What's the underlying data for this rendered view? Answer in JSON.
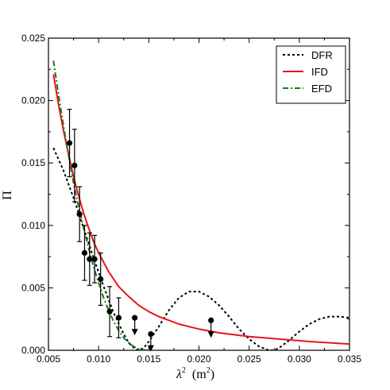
{
  "chart_data": {
    "type": "line",
    "xlabel": "λ² (m²)",
    "xlabel_main": "λ",
    "xlabel_exp": "2",
    "xlabel_unit": "(m",
    "xlabel_unit_exp": "2",
    "xlabel_unit_close": ")",
    "ylabel": "Π",
    "xlim": [
      0.005,
      0.035
    ],
    "ylim": [
      0.0,
      0.025
    ],
    "x_ticks": [
      "0.005",
      "0.010",
      "0.015",
      "0.020",
      "0.025",
      "0.030",
      "0.035"
    ],
    "y_ticks": [
      "0.000",
      "0.005",
      "0.010",
      "0.015",
      "0.020",
      "0.025"
    ],
    "x_tick_values": [
      0.005,
      0.01,
      0.015,
      0.02,
      0.025,
      0.03,
      0.035
    ],
    "y_tick_values": [
      0.0,
      0.005,
      0.01,
      0.015,
      0.02,
      0.025
    ],
    "legend_position": "top-right",
    "series": [
      {
        "name": "DFR",
        "style": "dotted",
        "color": "#000000",
        "x": [
          0.0055,
          0.0065,
          0.0075,
          0.0085,
          0.0095,
          0.0105,
          0.0115,
          0.0125,
          0.013,
          0.0135,
          0.014,
          0.0145,
          0.015,
          0.016,
          0.017,
          0.018,
          0.019,
          0.02,
          0.021,
          0.022,
          0.023,
          0.024,
          0.025,
          0.026,
          0.027,
          0.0275,
          0.028,
          0.029,
          0.03,
          0.031,
          0.032,
          0.033,
          0.034,
          0.035
        ],
        "y": [
          0.0162,
          0.0144,
          0.0122,
          0.0098,
          0.0074,
          0.0051,
          0.003,
          0.0013,
          0.0006,
          0.0002,
          0.0,
          0.0002,
          0.0007,
          0.0019,
          0.0032,
          0.0042,
          0.0047,
          0.0047,
          0.0043,
          0.0036,
          0.0027,
          0.0017,
          0.0009,
          0.0003,
          0.0,
          0.0,
          0.0002,
          0.0008,
          0.0015,
          0.0021,
          0.0025,
          0.0027,
          0.0027,
          0.0026
        ]
      },
      {
        "name": "IFD",
        "style": "solid",
        "color": "#e8141b",
        "x": [
          0.0055,
          0.006,
          0.0065,
          0.007,
          0.0075,
          0.008,
          0.0085,
          0.009,
          0.0095,
          0.01,
          0.011,
          0.012,
          0.013,
          0.014,
          0.015,
          0.016,
          0.018,
          0.02,
          0.022,
          0.025,
          0.028,
          0.031,
          0.035
        ],
        "y": [
          0.0221,
          0.0197,
          0.0176,
          0.0157,
          0.0139,
          0.0124,
          0.011,
          0.0098,
          0.0087,
          0.0078,
          0.0063,
          0.0051,
          0.0043,
          0.0036,
          0.0031,
          0.0027,
          0.0021,
          0.0017,
          0.0014,
          0.0011,
          0.0009,
          0.0007,
          0.0005
        ]
      },
      {
        "name": "EFD",
        "style": "dash-dot",
        "color": "#1a7a1a",
        "x": [
          0.0055,
          0.006,
          0.0065,
          0.007,
          0.0075,
          0.008,
          0.0085,
          0.009,
          0.0095,
          0.01,
          0.0105,
          0.011,
          0.0115,
          0.012,
          0.0125,
          0.013,
          0.0135,
          0.014,
          0.0145,
          0.015,
          0.0155
        ],
        "y": [
          0.0232,
          0.0205,
          0.018,
          0.0156,
          0.0134,
          0.0115,
          0.0098,
          0.0082,
          0.0067,
          0.0054,
          0.0042,
          0.0032,
          0.0023,
          0.0016,
          0.001,
          0.0006,
          0.0003,
          0.0001,
          4e-05,
          0.0,
          0.0
        ]
      }
    ],
    "data_points": [
      {
        "x": 0.0071,
        "y": 0.0166,
        "err": 0.0027
      },
      {
        "x": 0.0076,
        "y": 0.0148,
        "err": 0.0029
      },
      {
        "x": 0.0081,
        "y": 0.0109,
        "err": 0.0022
      },
      {
        "x": 0.0086,
        "y": 0.0078,
        "err": 0.0022
      },
      {
        "x": 0.0091,
        "y": 0.0073,
        "err": 0.0021
      },
      {
        "x": 0.0096,
        "y": 0.0073,
        "err": 0.0019
      },
      {
        "x": 0.0102,
        "y": 0.0057,
        "err": 0.0021
      },
      {
        "x": 0.0111,
        "y": 0.0031,
        "err": 0.002
      },
      {
        "x": 0.012,
        "y": 0.0026,
        "err": 0.0016
      }
    ],
    "upper_limits": [
      {
        "x": 0.0136,
        "y": 0.0026
      },
      {
        "x": 0.0152,
        "y": 0.0013
      },
      {
        "x": 0.0212,
        "y": 0.0024
      }
    ]
  }
}
